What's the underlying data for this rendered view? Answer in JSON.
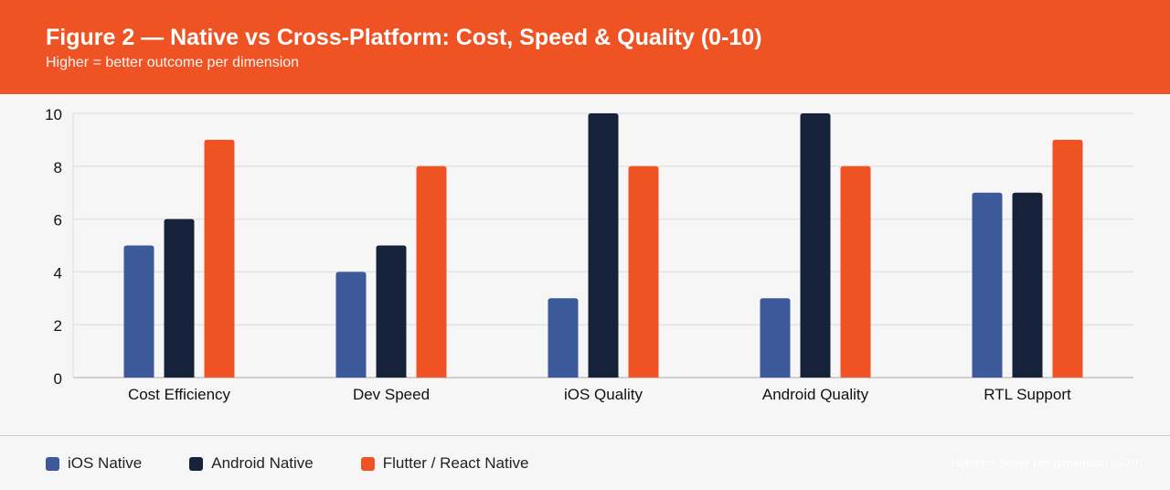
{
  "header": {
    "title": "Figure 2 — Native vs Cross-Platform: Cost, Speed & Quality (0-10)",
    "subtitle": "Higher = better outcome per dimension"
  },
  "footer_note": "Higher = better per dimension (0-10)",
  "chart_data": {
    "type": "bar",
    "categories": [
      "Cost Efficiency",
      "Dev Speed",
      "iOS Quality",
      "Android Quality",
      "RTL Support"
    ],
    "series": [
      {
        "name": "iOS Native",
        "color": "#3c5a99",
        "values": [
          5,
          4,
          3,
          3,
          7
        ]
      },
      {
        "name": "Android Native",
        "color": "#16213a",
        "values": [
          6,
          5,
          10,
          10,
          7
        ]
      },
      {
        "name": "Flutter / React Native",
        "color": "#f05323",
        "values": [
          9,
          8,
          8,
          8,
          9
        ]
      }
    ],
    "ylim": [
      0,
      10
    ],
    "yticks": [
      0,
      2,
      4,
      6,
      8,
      10
    ],
    "grid": true,
    "legend": "bottom-left"
  }
}
